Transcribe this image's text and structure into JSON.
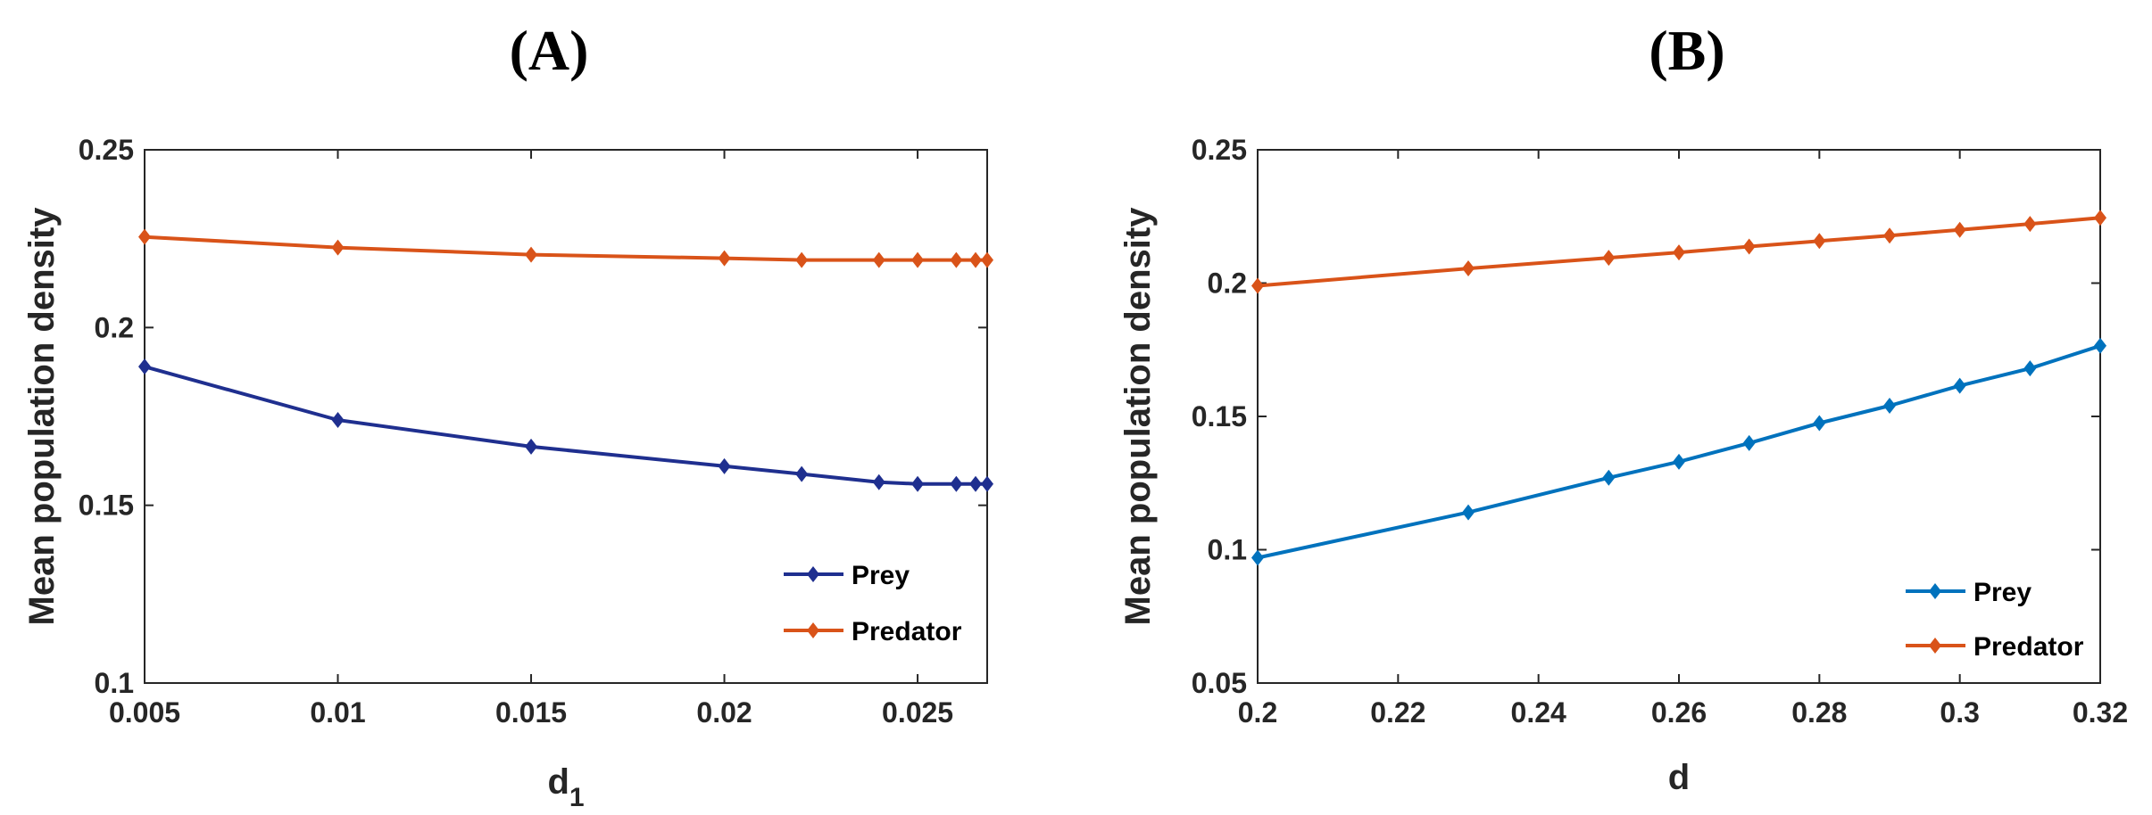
{
  "chart_data": [
    {
      "type": "line",
      "panel_title": "(A)",
      "xlabel": "d",
      "xlabel_subscript": "1",
      "ylabel": "Mean population density",
      "xlim": [
        0.005,
        0.0268
      ],
      "ylim": [
        0.1,
        0.25
      ],
      "xticks": [
        "0.005",
        "0.01",
        "0.015",
        "0.02",
        "0.025"
      ],
      "xtick_values": [
        0.005,
        0.01,
        0.015,
        0.02,
        0.025
      ],
      "yticks": [
        "0.1",
        "0.15",
        "0.2",
        "0.25"
      ],
      "ytick_values": [
        0.1,
        0.15,
        0.2,
        0.25
      ],
      "grid": false,
      "legend_position": "bottom-right",
      "x": [
        0.005,
        0.01,
        0.015,
        0.02,
        0.022,
        0.024,
        0.025,
        0.026,
        0.0265,
        0.0268
      ],
      "series": [
        {
          "name": "Prey",
          "color": "#1f2f8f",
          "values": [
            0.189,
            0.174,
            0.1665,
            0.161,
            0.1588,
            0.1565,
            0.156,
            0.156,
            0.156,
            0.156
          ]
        },
        {
          "name": "Predator",
          "color": "#d95319",
          "values": [
            0.2255,
            0.2225,
            0.2205,
            0.2195,
            0.219,
            0.219,
            0.219,
            0.219,
            0.219,
            0.219
          ]
        }
      ]
    },
    {
      "type": "line",
      "panel_title": "(B)",
      "xlabel": "d",
      "xlabel_subscript": "",
      "ylabel": "Mean population density",
      "xlim": [
        0.2,
        0.32
      ],
      "ylim": [
        0.05,
        0.25
      ],
      "xticks": [
        "0.2",
        "0.22",
        "0.24",
        "0.26",
        "0.28",
        "0.3",
        "0.32"
      ],
      "xtick_values": [
        0.2,
        0.22,
        0.24,
        0.26,
        0.28,
        0.3,
        0.32
      ],
      "yticks": [
        "0.05",
        "0.1",
        "0.15",
        "0.2",
        "0.25"
      ],
      "ytick_values": [
        0.05,
        0.1,
        0.15,
        0.2,
        0.25
      ],
      "grid": false,
      "legend_position": "bottom-right",
      "x": [
        0.2,
        0.23,
        0.25,
        0.26,
        0.27,
        0.28,
        0.29,
        0.3,
        0.31,
        0.32
      ],
      "series": [
        {
          "name": "Prey",
          "color": "#0072bd",
          "values": [
            0.097,
            0.114,
            0.127,
            0.133,
            0.14,
            0.1475,
            0.154,
            0.1615,
            0.168,
            0.1765
          ]
        },
        {
          "name": "Predator",
          "color": "#d95319",
          "values": [
            0.199,
            0.2055,
            0.2095,
            0.2115,
            0.2137,
            0.2158,
            0.2178,
            0.22,
            0.2222,
            0.2245
          ]
        }
      ]
    }
  ]
}
